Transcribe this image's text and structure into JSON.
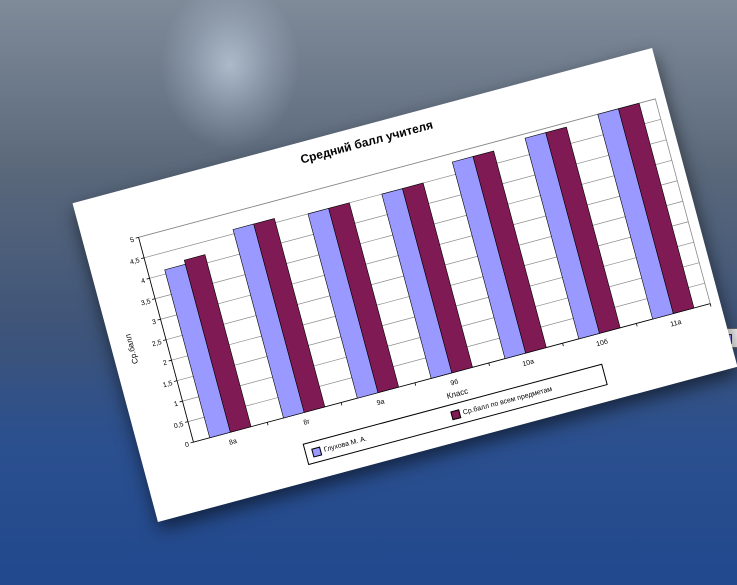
{
  "chart_data": {
    "type": "bar",
    "title": "Средний балл учителя",
    "xlabel": "Класс",
    "ylabel": "Ср.балл",
    "categories": [
      "8а",
      "8г",
      "9а",
      "9б",
      "10а",
      "10б",
      "11а"
    ],
    "series": [
      {
        "name": "Глухова М. А.",
        "color": "#9999ff",
        "values": [
          4.1,
          4.6,
          4.5,
          4.5,
          4.8,
          4.9,
          5.0
        ]
      },
      {
        "name": "Ср.балл по всем предметам",
        "color": "#7f1a55",
        "values": [
          4.2,
          4.6,
          4.5,
          4.5,
          4.8,
          4.9,
          5.0
        ]
      }
    ],
    "y_ticks": [
      "0",
      "0,5",
      "1",
      "1,5",
      "2",
      "2,5",
      "3",
      "3,5",
      "4",
      "4,5",
      "5"
    ],
    "ylim": [
      0,
      5
    ],
    "grid": true,
    "legend": "bottom"
  }
}
